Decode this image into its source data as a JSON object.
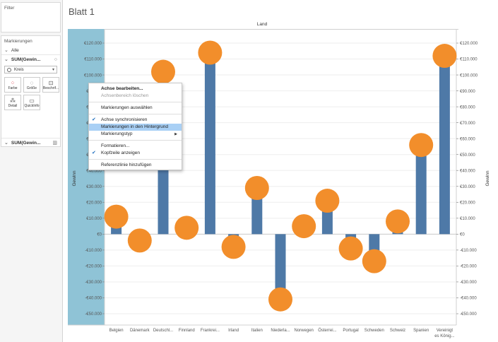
{
  "sidebar": {
    "filter_title": "Filter",
    "marks_title": "Markierungen",
    "all_label": "Alle",
    "measure_label": "SUM(Gewin...",
    "mark_type": "Kreis",
    "buttons": [
      {
        "label": "Farbe",
        "icon": "color-dots-icon"
      },
      {
        "label": "Größe",
        "icon": "size-icon"
      },
      {
        "label": "Beschrif...",
        "icon": "label-icon"
      },
      {
        "label": "Detail",
        "icon": "detail-icon"
      },
      {
        "label": "QuickInfo",
        "icon": "tooltip-icon"
      }
    ],
    "measure2_label": "SUM(Gewin..."
  },
  "sheet": {
    "title": "Blatt 1",
    "column_header": "Land"
  },
  "context_menu": {
    "items": [
      {
        "label": "Achse bearbeiten...",
        "bold": true
      },
      {
        "label": "Achsenbereich löschen",
        "disabled": true
      },
      {
        "separator": true
      },
      {
        "label": "Markierungen auswählen"
      },
      {
        "separator": true
      },
      {
        "label": "Achse synchronisieren",
        "checked": true
      },
      {
        "label": "Markierungen in den Hintergrund",
        "highlighted": true
      },
      {
        "label": "Markierungstyp",
        "submenu": true
      },
      {
        "separator": true
      },
      {
        "label": "Formatieren..."
      },
      {
        "label": "Kopfzeile anzeigen",
        "checked": true
      },
      {
        "separator": true
      },
      {
        "label": "Referenzlinie hinzufügen"
      }
    ]
  },
  "colors": {
    "bar": "#4e79a7",
    "circle": "#f28e2b",
    "axis_highlight": "#8fc3d6"
  },
  "chart_data": {
    "type": "bar",
    "title": "",
    "xlabel": "Land",
    "ylabel": "Gewinn",
    "y2label": "Gewinn",
    "ylim": [
      -50000,
      120000
    ],
    "yticks_left": [
      {
        "v": 120000,
        "t": "€120.000"
      },
      {
        "v": 110000,
        "t": "€110.000"
      },
      {
        "v": 100000,
        "t": "€100.000"
      },
      {
        "v": 90000,
        "t": "€90.000"
      },
      {
        "v": 80000,
        "t": "€80.000"
      },
      {
        "v": 70000,
        "t": "€70.000"
      },
      {
        "v": 60000,
        "t": "€60.000"
      },
      {
        "v": 50000,
        "t": "€50.000"
      },
      {
        "v": 40000,
        "t": "€40.000"
      },
      {
        "v": 30000,
        "t": "€30.000"
      },
      {
        "v": 20000,
        "t": "€20.000"
      },
      {
        "v": 10000,
        "t": "€10.000"
      },
      {
        "v": 0,
        "t": "€0"
      },
      {
        "v": -10000,
        "t": "-€10.000"
      },
      {
        "v": -20000,
        "t": "-€20.000"
      },
      {
        "v": -30000,
        "t": "-€30.000"
      },
      {
        "v": -40000,
        "t": "-€40.000"
      },
      {
        "v": -50000,
        "t": "-€50.000"
      }
    ],
    "yticks_right": [
      {
        "v": 120000,
        "t": "€120.000"
      },
      {
        "v": 110000,
        "t": "€110.000"
      },
      {
        "v": 100000,
        "t": "€100.000"
      },
      {
        "v": 90000,
        "t": "€90.000"
      },
      {
        "v": 80000,
        "t": "€80.000"
      },
      {
        "v": 70000,
        "t": "€70.000"
      },
      {
        "v": 60000,
        "t": "€60.000"
      },
      {
        "v": 50000,
        "t": "€50.000"
      },
      {
        "v": 40000,
        "t": "€40.000"
      },
      {
        "v": 30000,
        "t": "€30.000"
      },
      {
        "v": 20000,
        "t": "€20.000"
      },
      {
        "v": 10000,
        "t": "€10.000"
      },
      {
        "v": 0,
        "t": "€0"
      },
      {
        "v": -10000,
        "t": "-€10.000"
      },
      {
        "v": -20000,
        "t": "-€20.000"
      },
      {
        "v": -30000,
        "t": "-€30.000"
      },
      {
        "v": -40000,
        "t": "-€40.000"
      },
      {
        "v": -50000,
        "t": "-€50.000"
      }
    ],
    "categories": [
      "Belgien",
      "Dänemark",
      "Deutschl...",
      "Finnland",
      "Frankrei...",
      "Irland",
      "Italien",
      "Niederla...",
      "Norwegen",
      "Österrei...",
      "Portugal",
      "Schweden",
      "Schweiz",
      "Spanien",
      "Vereinigt es König..."
    ],
    "series": [
      {
        "name": "SUM(Gewinn)",
        "mark": "bar",
        "values": [
          10000,
          -3000,
          103000,
          4000,
          113000,
          -8000,
          28000,
          -41000,
          5000,
          20000,
          -9000,
          -17000,
          7000,
          56000,
          112000
        ]
      },
      {
        "name": "SUM(Gewinn)",
        "mark": "circle",
        "values": [
          11000,
          -4000,
          102000,
          4000,
          114000,
          -8000,
          29000,
          -41000,
          5000,
          21000,
          -9000,
          -17000,
          8000,
          56000,
          112000
        ]
      }
    ]
  }
}
